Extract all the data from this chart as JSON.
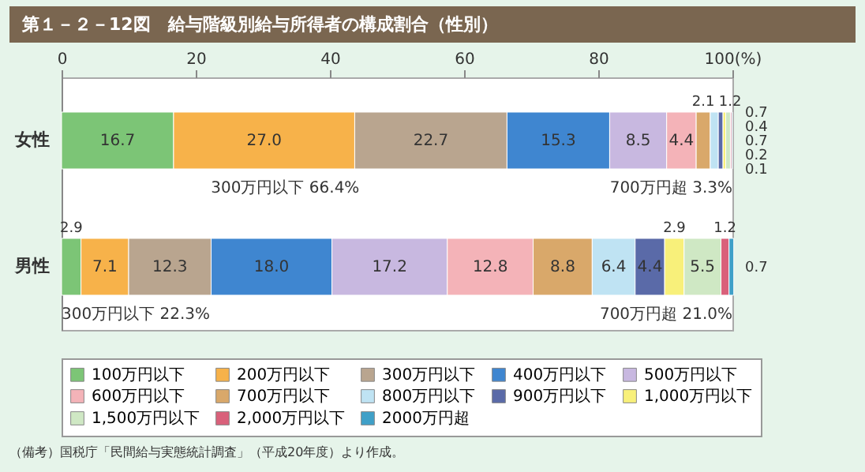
{
  "chart_data": {
    "type": "bar",
    "orientation": "horizontal",
    "stacked": true,
    "legend": "bottom",
    "title": "第１－２－12図　給与階級別給与所得者の構成割合（性別）",
    "categories": [
      "女性",
      "男性"
    ],
    "xlim": [
      0,
      100
    ],
    "xticks": [
      0,
      20,
      40,
      60,
      80,
      {
        "value": 100,
        "label": "100(%)"
      }
    ],
    "series": [
      {
        "name": "100万円以下",
        "color": "#7cc576",
        "values": [
          16.7,
          2.9
        ],
        "value_labels": [
          "16.7",
          "2.9"
        ]
      },
      {
        "name": "200万円以下",
        "color": "#f7b24a",
        "values": [
          27.0,
          7.1
        ],
        "value_labels": [
          "27.0",
          "7.1"
        ]
      },
      {
        "name": "300万円以下",
        "color": "#b9a58f",
        "values": [
          22.7,
          12.3
        ],
        "value_labels": [
          "22.7",
          "12.3"
        ]
      },
      {
        "name": "400万円以下",
        "color": "#3f86d0",
        "values": [
          15.3,
          18.0
        ],
        "value_labels": [
          "15.3",
          "18.0"
        ]
      },
      {
        "name": "500万円以下",
        "color": "#c8b8e0",
        "values": [
          8.5,
          17.2
        ],
        "value_labels": [
          "8.5",
          "17.2"
        ]
      },
      {
        "name": "600万円以下",
        "color": "#f4b3b8",
        "values": [
          4.4,
          12.8
        ],
        "value_labels": [
          "4.4",
          "12.8"
        ]
      },
      {
        "name": "700万円以下",
        "color": "#d9a86a",
        "values": [
          2.1,
          8.8
        ],
        "value_labels": [
          "2.1",
          "8.8"
        ]
      },
      {
        "name": "800万円以下",
        "color": "#bfe3f3",
        "values": [
          1.2,
          6.4
        ],
        "value_labels": [
          "1.2",
          "6.4"
        ]
      },
      {
        "name": "900万円以下",
        "color": "#5a6aa8",
        "values": [
          0.7,
          4.4
        ],
        "value_labels": [
          "0.7",
          "4.4"
        ]
      },
      {
        "name": "1,000万円以下",
        "color": "#f8f07a",
        "values": [
          0.4,
          2.9
        ],
        "value_labels": [
          "0.4",
          "2.9"
        ]
      },
      {
        "name": "1,500万円以下",
        "color": "#cfe8c4",
        "values": [
          0.7,
          5.5
        ],
        "value_labels": [
          "0.7",
          "5.5"
        ]
      },
      {
        "name": "2,000万円以下",
        "color": "#d9607a",
        "values": [
          0.2,
          1.2
        ],
        "value_labels": [
          "0.2",
          "1.2"
        ]
      },
      {
        "name": "2000万円超",
        "color": "#3fa0c8",
        "values": [
          0.1,
          0.7
        ],
        "value_labels": [
          "0.1",
          "0.7"
        ]
      }
    ],
    "annotations": [
      "300万円以下 66.4%",
      "700万円超 3.3%",
      "300万円以下 22.3%",
      "700万円超 21.0%",
      "（備考）国税庁「民間給与実態統計調査」（平成20年度）より作成。"
    ]
  }
}
